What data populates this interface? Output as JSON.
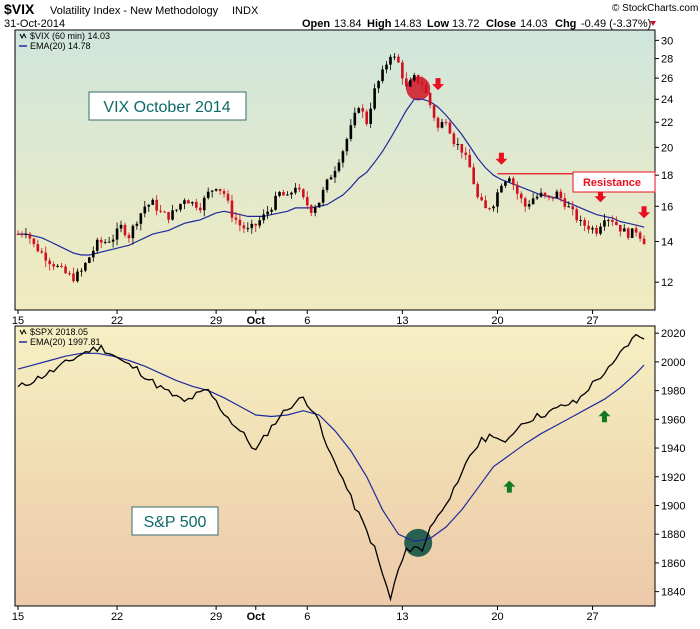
{
  "header": {
    "symbol": "$VIX",
    "name": "Volatility Index - New Methodology",
    "exchange": "INDX",
    "date": "31-Oct-2014",
    "brand": "© StockCharts.com",
    "ohlc": [
      {
        "label": "Open",
        "value": "13.84"
      },
      {
        "label": "High",
        "value": "14.83"
      },
      {
        "label": "Low",
        "value": "13.72"
      },
      {
        "label": "Close",
        "value": "14.03"
      },
      {
        "label": "Chg",
        "value": "-0.49 (-3.37%)"
      }
    ]
  },
  "colors": {
    "price_line": "#000000",
    "ema_line": "#1f2a9c",
    "candle_up": "#000000",
    "candle_down": "#d0101e",
    "arrow_down": "#e8101e",
    "arrow_up": "#107a1e",
    "resistance": "#e8101e",
    "circle_vix": "#d0202e",
    "circle_spx": "#1f5a4a",
    "label_text": "#0e6a6a"
  },
  "annotations": {
    "vix_title": "VIX October 2014",
    "spx_title": "S&P 500",
    "resistance": "Resistance"
  },
  "chart_data": [
    {
      "type": "candlestick",
      "panel": "top",
      "legend": [
        {
          "text": "$VIX (60 min) 14.03",
          "series": "price"
        },
        {
          "text": "EMA(20) 14.78",
          "series": "ema"
        }
      ],
      "x_ticks": [
        "15",
        "22",
        "29",
        "Oct",
        "6",
        "13",
        "20",
        "27"
      ],
      "y_ticks": [
        12,
        14,
        16,
        18,
        20,
        22,
        24,
        26,
        28,
        30
      ],
      "ylim": [
        10.8,
        31.2
      ],
      "log_scale": true,
      "grid": false,
      "resistance_level": 18.1,
      "price": [
        [
          0,
          14.4
        ],
        [
          2,
          14.6
        ],
        [
          4,
          13.8
        ],
        [
          6,
          13.4
        ],
        [
          8,
          13.0
        ],
        [
          10,
          12.7
        ],
        [
          12,
          12.4
        ],
        [
          14,
          12.2
        ],
        [
          16,
          12.5
        ],
        [
          18,
          13.2
        ],
        [
          20,
          13.9
        ],
        [
          22,
          14.0
        ],
        [
          24,
          14.2
        ],
        [
          26,
          14.8
        ],
        [
          28,
          14.3
        ],
        [
          30,
          15.2
        ],
        [
          32,
          16.0
        ],
        [
          34,
          16.2
        ],
        [
          36,
          15.6
        ],
        [
          38,
          15.4
        ],
        [
          40,
          15.8
        ],
        [
          42,
          16.5
        ],
        [
          44,
          16.2
        ],
        [
          46,
          16.0
        ],
        [
          48,
          16.8
        ],
        [
          50,
          17.3
        ],
        [
          52,
          16.8
        ],
        [
          54,
          15.5
        ],
        [
          56,
          14.9
        ],
        [
          58,
          14.6
        ],
        [
          60,
          14.9
        ],
        [
          62,
          15.4
        ],
        [
          64,
          16.0
        ],
        [
          66,
          16.8
        ],
        [
          68,
          16.5
        ],
        [
          70,
          17.3
        ],
        [
          72,
          16.4
        ],
        [
          74,
          15.8
        ],
        [
          76,
          16.3
        ],
        [
          78,
          17.5
        ],
        [
          80,
          18.5
        ],
        [
          82,
          19.8
        ],
        [
          84,
          21.5
        ],
        [
          86,
          23.5
        ],
        [
          88,
          22.0
        ],
        [
          90,
          24.8
        ],
        [
          92,
          26.5
        ],
        [
          94,
          28.5
        ],
        [
          96,
          27.5
        ],
        [
          98,
          25.0
        ],
        [
          100,
          26.0
        ],
        [
          102,
          25.5
        ],
        [
          104,
          23.5
        ],
        [
          106,
          21.5
        ],
        [
          108,
          22.3
        ],
        [
          110,
          20.5
        ],
        [
          112,
          19.8
        ],
        [
          114,
          18.5
        ],
        [
          116,
          16.5
        ],
        [
          118,
          15.8
        ],
        [
          120,
          16.2
        ],
        [
          122,
          17.5
        ],
        [
          124,
          18.0
        ],
        [
          126,
          16.8
        ],
        [
          128,
          16.0
        ],
        [
          130,
          16.5
        ],
        [
          132,
          16.7
        ],
        [
          134,
          16.4
        ],
        [
          136,
          16.8
        ],
        [
          138,
          16.2
        ],
        [
          140,
          15.6
        ],
        [
          142,
          15.0
        ],
        [
          144,
          14.8
        ],
        [
          146,
          14.6
        ],
        [
          148,
          15.4
        ],
        [
          150,
          15.2
        ],
        [
          152,
          14.7
        ],
        [
          154,
          14.4
        ],
        [
          156,
          14.6
        ],
        [
          158,
          14.03
        ]
      ],
      "ema": [
        [
          0,
          14.4
        ],
        [
          2,
          14.4
        ],
        [
          4,
          14.3
        ],
        [
          6,
          14.2
        ],
        [
          8,
          14.0
        ],
        [
          10,
          13.8
        ],
        [
          12,
          13.6
        ],
        [
          14,
          13.4
        ],
        [
          16,
          13.3
        ],
        [
          18,
          13.3
        ],
        [
          20,
          13.4
        ],
        [
          22,
          13.5
        ],
        [
          24,
          13.6
        ],
        [
          26,
          13.7
        ],
        [
          28,
          13.8
        ],
        [
          30,
          14.0
        ],
        [
          32,
          14.2
        ],
        [
          34,
          14.4
        ],
        [
          36,
          14.5
        ],
        [
          38,
          14.6
        ],
        [
          40,
          14.8
        ],
        [
          42,
          15.0
        ],
        [
          44,
          15.1
        ],
        [
          46,
          15.2
        ],
        [
          48,
          15.4
        ],
        [
          50,
          15.6
        ],
        [
          52,
          15.7
        ],
        [
          54,
          15.6
        ],
        [
          56,
          15.5
        ],
        [
          58,
          15.4
        ],
        [
          60,
          15.4
        ],
        [
          62,
          15.4
        ],
        [
          64,
          15.5
        ],
        [
          66,
          15.6
        ],
        [
          68,
          15.7
        ],
        [
          70,
          15.9
        ],
        [
          72,
          15.9
        ],
        [
          74,
          15.9
        ],
        [
          76,
          16.0
        ],
        [
          78,
          16.1
        ],
        [
          80,
          16.4
        ],
        [
          82,
          16.7
        ],
        [
          84,
          17.2
        ],
        [
          86,
          17.8
        ],
        [
          88,
          18.2
        ],
        [
          90,
          18.9
        ],
        [
          92,
          19.7
        ],
        [
          94,
          20.7
        ],
        [
          96,
          21.8
        ],
        [
          98,
          23.0
        ],
        [
          100,
          24.0
        ],
        [
          102,
          24.0
        ],
        [
          104,
          23.8
        ],
        [
          106,
          23.3
        ],
        [
          108,
          22.6
        ],
        [
          110,
          21.8
        ],
        [
          112,
          21.0
        ],
        [
          114,
          20.1
        ],
        [
          116,
          19.2
        ],
        [
          118,
          18.5
        ],
        [
          120,
          18.0
        ],
        [
          122,
          17.7
        ],
        [
          124,
          17.5
        ],
        [
          126,
          17.3
        ],
        [
          128,
          17.1
        ],
        [
          130,
          16.9
        ],
        [
          132,
          16.7
        ],
        [
          134,
          16.6
        ],
        [
          136,
          16.5
        ],
        [
          138,
          16.3
        ],
        [
          140,
          16.1
        ],
        [
          142,
          15.9
        ],
        [
          144,
          15.7
        ],
        [
          146,
          15.5
        ],
        [
          148,
          15.4
        ],
        [
          150,
          15.3
        ],
        [
          152,
          15.1
        ],
        [
          154,
          15.0
        ],
        [
          156,
          14.9
        ],
        [
          158,
          14.78
        ]
      ]
    },
    {
      "type": "line",
      "panel": "bottom",
      "legend": [
        {
          "text": "$SPX 2018.05",
          "series": "price"
        },
        {
          "text": "EMA(20) 1997.81",
          "series": "ema"
        }
      ],
      "x_ticks": [
        "15",
        "22",
        "29",
        "Oct",
        "6",
        "13",
        "20",
        "27"
      ],
      "y_ticks": [
        1840,
        1860,
        1880,
        1900,
        1920,
        1940,
        1960,
        1980,
        2000,
        2020
      ],
      "ylim": [
        1830,
        2025
      ],
      "grid": false,
      "price": [
        [
          0,
          1982
        ],
        [
          3,
          1986
        ],
        [
          6,
          1990
        ],
        [
          9,
          1994
        ],
        [
          12,
          1999
        ],
        [
          15,
          2004
        ],
        [
          18,
          2008
        ],
        [
          21,
          2010
        ],
        [
          24,
          2005
        ],
        [
          27,
          1999
        ],
        [
          30,
          1995
        ],
        [
          33,
          1988
        ],
        [
          36,
          1982
        ],
        [
          39,
          1977
        ],
        [
          42,
          1972
        ],
        [
          45,
          1977
        ],
        [
          48,
          1980
        ],
        [
          51,
          1968
        ],
        [
          54,
          1958
        ],
        [
          57,
          1949
        ],
        [
          60,
          1938
        ],
        [
          63,
          1951
        ],
        [
          66,
          1962
        ],
        [
          69,
          1970
        ],
        [
          72,
          1975
        ],
        [
          75,
          1965
        ],
        [
          78,
          1940
        ],
        [
          81,
          1925
        ],
        [
          84,
          1905
        ],
        [
          87,
          1888
        ],
        [
          90,
          1870
        ],
        [
          92,
          1852
        ],
        [
          94,
          1835
        ],
        [
          96,
          1855
        ],
        [
          98,
          1868
        ],
        [
          100,
          1872
        ],
        [
          102,
          1868
        ],
        [
          104,
          1886
        ],
        [
          106,
          1892
        ],
        [
          108,
          1903
        ],
        [
          111,
          1914
        ],
        [
          114,
          1935
        ],
        [
          117,
          1945
        ],
        [
          120,
          1950
        ],
        [
          123,
          1942
        ],
        [
          126,
          1955
        ],
        [
          129,
          1960
        ],
        [
          132,
          1963
        ],
        [
          135,
          1966
        ],
        [
          138,
          1970
        ],
        [
          141,
          1972
        ],
        [
          144,
          1982
        ],
        [
          147,
          1990
        ],
        [
          150,
          1997
        ],
        [
          153,
          2010
        ],
        [
          156,
          2018
        ],
        [
          158,
          2018.05
        ]
      ],
      "ema": [
        [
          0,
          1995
        ],
        [
          4,
          1998
        ],
        [
          8,
          2001
        ],
        [
          12,
          2004
        ],
        [
          16,
          2006
        ],
        [
          20,
          2006
        ],
        [
          24,
          2004
        ],
        [
          28,
          2001
        ],
        [
          32,
          1997
        ],
        [
          36,
          1992
        ],
        [
          40,
          1987
        ],
        [
          44,
          1983
        ],
        [
          48,
          1980
        ],
        [
          52,
          1975
        ],
        [
          56,
          1969
        ],
        [
          60,
          1963
        ],
        [
          64,
          1962
        ],
        [
          68,
          1963
        ],
        [
          72,
          1966
        ],
        [
          76,
          1963
        ],
        [
          80,
          1952
        ],
        [
          84,
          1938
        ],
        [
          88,
          1920
        ],
        [
          92,
          1897
        ],
        [
          96,
          1880
        ],
        [
          100,
          1875
        ],
        [
          104,
          1877
        ],
        [
          108,
          1885
        ],
        [
          112,
          1897
        ],
        [
          116,
          1912
        ],
        [
          120,
          1927
        ],
        [
          124,
          1935
        ],
        [
          128,
          1943
        ],
        [
          132,
          1950
        ],
        [
          136,
          1956
        ],
        [
          140,
          1962
        ],
        [
          144,
          1968
        ],
        [
          148,
          1974
        ],
        [
          152,
          1982
        ],
        [
          156,
          1992
        ],
        [
          158,
          1997.81
        ]
      ],
      "current_price_label": "2020"
    }
  ]
}
